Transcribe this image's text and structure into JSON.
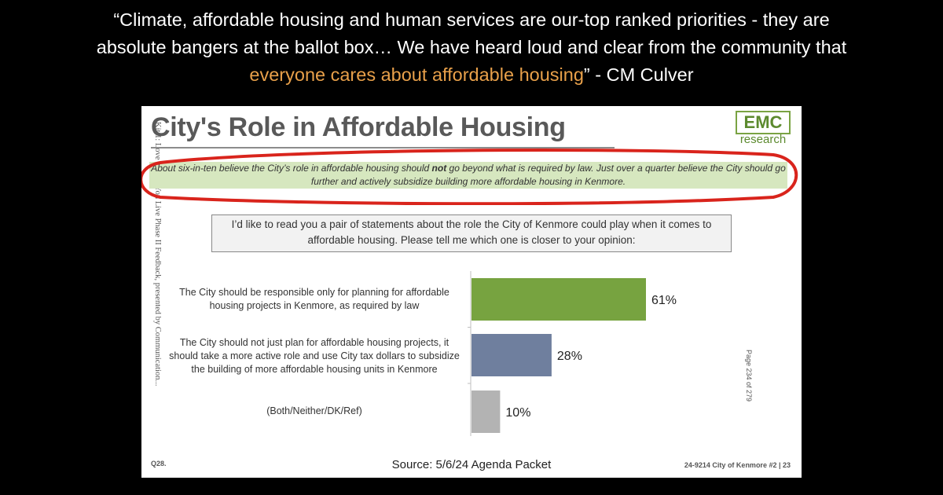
{
  "quote": {
    "line1": "“Climate, affordable housing and human services are our-top ranked priorities - they are",
    "line2": "absolute bangers at the ballot box… We have heard loud and clear from the community that",
    "highlight": "everyone cares about affordable housing",
    "attribution": "” - CM Culver"
  },
  "slide": {
    "title": "City's Role in Affordable Housing",
    "logo_main": "EMC",
    "logo_sub": "research",
    "summary_before": "About six-in-ten believe the City’s role in affordable housing should ",
    "summary_bold": "not",
    "summary_after": " go beyond what is required by law. Just over a quarter believe the City should go further and actively subsidize building more affordable housing in Kenmore.",
    "side_text": "Kit 1: Love Where You Live Phase II Feedback, presented by Communication...",
    "question": "I’d like to read you a pair of statements about the role the City of Kenmore could play when it comes to affordable housing. Please tell me which one is closer to your opinion:",
    "page_number": "Page 234 of 279",
    "question_id": "Q28.",
    "source": "Source: 5/6/24 Agenda Packet",
    "footer": "24-9214 City of Kenmore #2 | 23"
  },
  "chart_data": {
    "type": "bar",
    "orientation": "horizontal",
    "categories": [
      "The City should be responsible only for planning for affordable housing projects in Kenmore, as required by law",
      "The City should not just plan for affordable housing projects, it should take a more active role and use City tax dollars to subsidize the building of more affordable housing units in Kenmore",
      "(Both/Neither/DK/Ref)"
    ],
    "values": [
      61,
      28,
      10
    ],
    "value_labels": [
      "61%",
      "28%",
      "10%"
    ],
    "colors": [
      "#77a340",
      "#6f7f9e",
      "#b3b3b3"
    ],
    "xlim": [
      0,
      100
    ]
  },
  "colors": {
    "accent_quote": "#e8a04a",
    "summary_bg": "#d6e7bf",
    "ellipse": "#d9241c"
  }
}
